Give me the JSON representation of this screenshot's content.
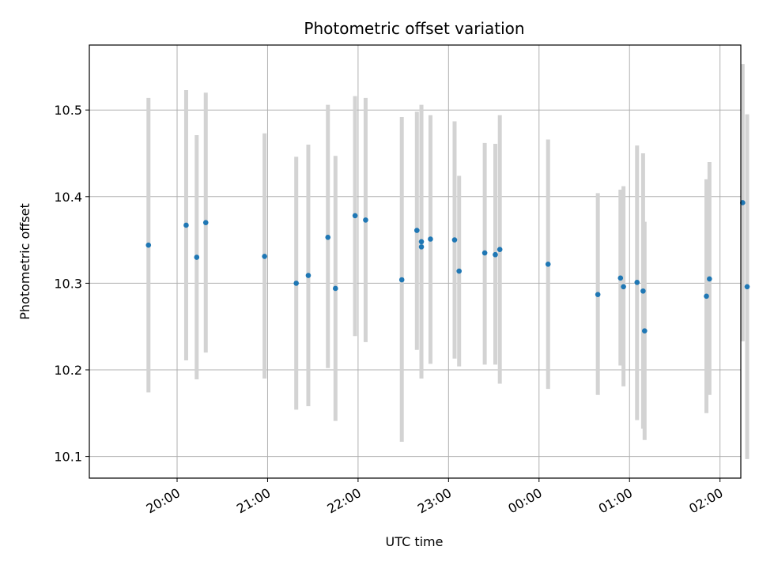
{
  "chart_data": {
    "type": "scatter",
    "title": "Photometric offset variation",
    "xlabel": "UTC time",
    "ylabel": "Photometric offset",
    "x_unit": "hours since 00:00 UTC of first night (values > 24 wrap past midnight)",
    "xlim": [
      19.03,
      26.23
    ],
    "ylim": [
      10.075,
      10.575
    ],
    "x_ticks": [
      {
        "value": 20,
        "label": "20:00"
      },
      {
        "value": 21,
        "label": "21:00"
      },
      {
        "value": 22,
        "label": "22:00"
      },
      {
        "value": 23,
        "label": "23:00"
      },
      {
        "value": 24,
        "label": "00:00"
      },
      {
        "value": 25,
        "label": "01:00"
      },
      {
        "value": 26,
        "label": "02:00"
      }
    ],
    "y_ticks": [
      {
        "value": 10.1,
        "label": "10.1"
      },
      {
        "value": 10.2,
        "label": "10.2"
      },
      {
        "value": 10.3,
        "label": "10.3"
      },
      {
        "value": 10.4,
        "label": "10.4"
      },
      {
        "value": 10.5,
        "label": "10.5"
      }
    ],
    "grid": true,
    "marker_color": "#1f77b4",
    "errorbar_color": "#d3d3d3",
    "points": [
      {
        "x": "19:41",
        "y": 10.344,
        "ylow": 10.174,
        "yhigh": 10.514
      },
      {
        "x": "20:06",
        "y": 10.367,
        "ylow": 10.211,
        "yhigh": 10.523
      },
      {
        "x": "20:13",
        "y": 10.33,
        "ylow": 10.189,
        "yhigh": 10.471
      },
      {
        "x": "20:19",
        "y": 10.37,
        "ylow": 10.22,
        "yhigh": 10.52
      },
      {
        "x": "20:58",
        "y": 10.331,
        "ylow": 10.19,
        "yhigh": 10.473
      },
      {
        "x": "21:19",
        "y": 10.3,
        "ylow": 10.154,
        "yhigh": 10.446
      },
      {
        "x": "21:27",
        "y": 10.309,
        "ylow": 10.158,
        "yhigh": 10.46
      },
      {
        "x": "21:40",
        "y": 10.353,
        "ylow": 10.202,
        "yhigh": 10.506
      },
      {
        "x": "21:45",
        "y": 10.294,
        "ylow": 10.141,
        "yhigh": 10.447
      },
      {
        "x": "21:58",
        "y": 10.378,
        "ylow": 10.239,
        "yhigh": 10.516
      },
      {
        "x": "22:05",
        "y": 10.373,
        "ylow": 10.232,
        "yhigh": 10.514
      },
      {
        "x": "22:29",
        "y": 10.304,
        "ylow": 10.117,
        "yhigh": 10.492
      },
      {
        "x": "22:39",
        "y": 10.361,
        "ylow": 10.223,
        "yhigh": 10.498
      },
      {
        "x": "22:42",
        "y": 10.342,
        "ylow": 10.19,
        "yhigh": 10.506
      },
      {
        "x": "22:42",
        "y": 10.348,
        "ylow": 10.21,
        "yhigh": 10.486
      },
      {
        "x": "22:48",
        "y": 10.351,
        "ylow": 10.207,
        "yhigh": 10.494
      },
      {
        "x": "23:04",
        "y": 10.35,
        "ylow": 10.213,
        "yhigh": 10.487
      },
      {
        "x": "23:07",
        "y": 10.314,
        "ylow": 10.204,
        "yhigh": 10.424
      },
      {
        "x": "23:24",
        "y": 10.335,
        "ylow": 10.206,
        "yhigh": 10.462
      },
      {
        "x": "23:31",
        "y": 10.333,
        "ylow": 10.206,
        "yhigh": 10.461
      },
      {
        "x": "23:34",
        "y": 10.339,
        "ylow": 10.184,
        "yhigh": 10.494
      },
      {
        "x": "00:06",
        "y": 10.322,
        "ylow": 10.178,
        "yhigh": 10.466
      },
      {
        "x": "00:39",
        "y": 10.287,
        "ylow": 10.171,
        "yhigh": 10.404
      },
      {
        "x": "00:54",
        "y": 10.306,
        "ylow": 10.205,
        "yhigh": 10.408
      },
      {
        "x": "00:56",
        "y": 10.296,
        "ylow": 10.181,
        "yhigh": 10.412
      },
      {
        "x": "01:05",
        "y": 10.301,
        "ylow": 10.142,
        "yhigh": 10.459
      },
      {
        "x": "01:09",
        "y": 10.291,
        "ylow": 10.132,
        "yhigh": 10.45
      },
      {
        "x": "01:10",
        "y": 10.245,
        "ylow": 10.119,
        "yhigh": 10.371
      },
      {
        "x": "01:51",
        "y": 10.285,
        "ylow": 10.15,
        "yhigh": 10.42
      },
      {
        "x": "01:53",
        "y": 10.305,
        "ylow": 10.171,
        "yhigh": 10.44
      },
      {
        "x": "02:15",
        "y": 10.393,
        "ylow": 10.233,
        "yhigh": 10.553
      },
      {
        "x": "02:18",
        "y": 10.296,
        "ylow": 10.097,
        "yhigh": 10.495
      }
    ]
  }
}
